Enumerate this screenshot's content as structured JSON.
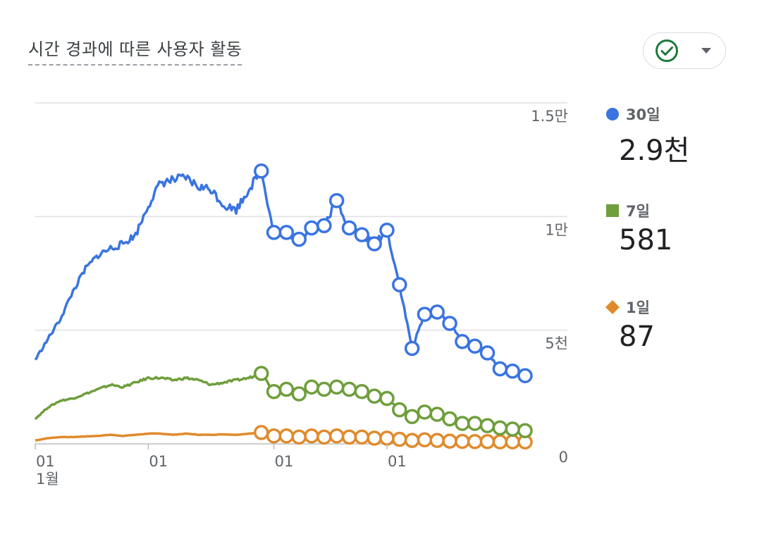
{
  "card": {
    "title": "시간 경과에 따른 사용자 활동",
    "status_icon": "check-circle-icon",
    "dropdown_icon": "caret-down-icon"
  },
  "colors": {
    "thirty_day": "#3a74e0",
    "seven_day": "#6f9e3c",
    "one_day": "#e08a2c",
    "grid": "#e0e0e0",
    "check": "#1e7a3a"
  },
  "legend": [
    {
      "label": "30일",
      "value": "2.9천",
      "shape": "circle",
      "color": "#3a74e0"
    },
    {
      "label": "7일",
      "value": "581",
      "shape": "square",
      "color": "#6f9e3c"
    },
    {
      "label": "1일",
      "value": "87",
      "shape": "diamond",
      "color": "#e08a2c"
    }
  ],
  "chart_data": {
    "type": "line",
    "y_ticks": [
      {
        "value": 15000,
        "label": "1.5만"
      },
      {
        "value": 10000,
        "label": "1만"
      },
      {
        "value": 5000,
        "label": "5천"
      },
      {
        "value": 0,
        "label": "0"
      }
    ],
    "x_ticks": [
      {
        "index": 0,
        "label": "01",
        "sublabel": "1월"
      },
      {
        "index": 9,
        "label": "01",
        "sublabel": ""
      },
      {
        "index": 19,
        "label": "01",
        "sublabel": ""
      },
      {
        "index": 28,
        "label": "01",
        "sublabel": ""
      }
    ],
    "ylim": [
      0,
      15000
    ],
    "grid": true,
    "series": [
      {
        "name": "30일",
        "color": "#3a74e0",
        "values": [
          3700,
          4600,
          5500,
          6700,
          7700,
          8300,
          8600,
          8800,
          9200,
          10500,
          11500,
          11600,
          11700,
          11300,
          11200,
          10500,
          10300,
          11200,
          12000,
          9300,
          9300,
          9000,
          9500,
          9600,
          10700,
          9500,
          9200,
          8800,
          9400,
          7000,
          4200,
          5700,
          5800,
          5300,
          4500,
          4300,
          4000,
          3300,
          3200,
          3000
        ]
      },
      {
        "name": "7일",
        "color": "#6f9e3c",
        "values": [
          1100,
          1600,
          1900,
          2000,
          2200,
          2400,
          2600,
          2500,
          2700,
          2900,
          2900,
          2800,
          2900,
          2800,
          2600,
          2700,
          2800,
          2900,
          3100,
          2300,
          2400,
          2200,
          2500,
          2400,
          2500,
          2400,
          2300,
          2100,
          2000,
          1500,
          1200,
          1400,
          1300,
          1100,
          900,
          900,
          800,
          700,
          650,
          580
        ]
      },
      {
        "name": "1일",
        "color": "#e08a2c",
        "values": [
          150,
          250,
          300,
          300,
          330,
          350,
          400,
          350,
          400,
          450,
          450,
          400,
          450,
          400,
          400,
          420,
          400,
          450,
          500,
          350,
          350,
          300,
          350,
          300,
          350,
          300,
          300,
          250,
          250,
          200,
          150,
          180,
          150,
          120,
          110,
          100,
          100,
          90,
          90,
          87
        ]
      }
    ]
  }
}
